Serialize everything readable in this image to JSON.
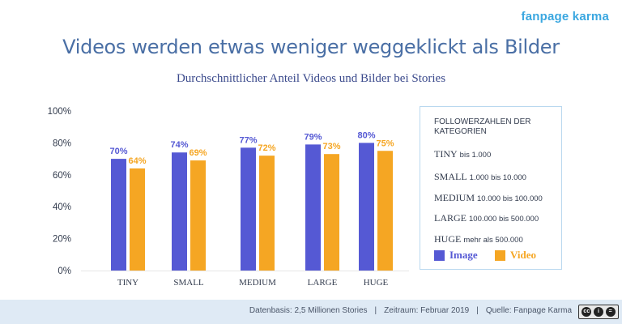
{
  "brand": "fanpage karma",
  "colors": {
    "image": "#5559d4",
    "video": "#f5a623",
    "axis": "#333c4e",
    "grid": "#e6e6e6"
  },
  "chart_data": {
    "type": "bar",
    "title": "Videos werden etwas weniger weggeklickt als Bilder",
    "subtitle": "Durchschnittlicher Anteil Videos und Bilder bei Stories",
    "categories": [
      "TINY",
      "SMALL",
      "MEDIUM",
      "LARGE",
      "HUGE"
    ],
    "series": [
      {
        "name": "Image",
        "values": [
          70,
          74,
          77,
          79,
          80
        ],
        "labels": [
          "70%",
          "74%",
          "77%",
          "79%",
          "80%"
        ]
      },
      {
        "name": "Video",
        "values": [
          64,
          69,
          72,
          73,
          75
        ],
        "labels": [
          "64%",
          "69%",
          "72%",
          "73%",
          "75%"
        ]
      }
    ],
    "ylim": [
      0,
      100
    ],
    "yticks": [
      0,
      20,
      40,
      60,
      80,
      100
    ],
    "ytick_labels": [
      "0%",
      "20%",
      "40%",
      "60%",
      "80%",
      "100%"
    ],
    "grid": false,
    "legend": "right"
  },
  "legend": {
    "heading": "FOLLOWERZAHLEN DER KATEGORIEN",
    "categories": [
      {
        "name": "TINY",
        "range": "bis 1.000"
      },
      {
        "name": "SMALL",
        "range": "1.000 bis 10.000"
      },
      {
        "name": "MEDIUM",
        "range": "10.000 bis 100.000"
      },
      {
        "name": "LARGE",
        "range": "100.000 bis 500.000"
      },
      {
        "name": "HUGE",
        "range": "mehr als 500.000"
      }
    ],
    "image_label": "Image",
    "video_label": "Video"
  },
  "footer": {
    "source": "Datenbasis: 2,5 Millionen Stories",
    "period": "Zeitraum: Februar 2019",
    "credit": "Quelle: Fanpage Karma",
    "separator": "|"
  },
  "license": {
    "icons": [
      "cc-icon",
      "by-icon",
      "nd-icon"
    ],
    "glyphs": [
      "cc",
      "i",
      "="
    ]
  }
}
